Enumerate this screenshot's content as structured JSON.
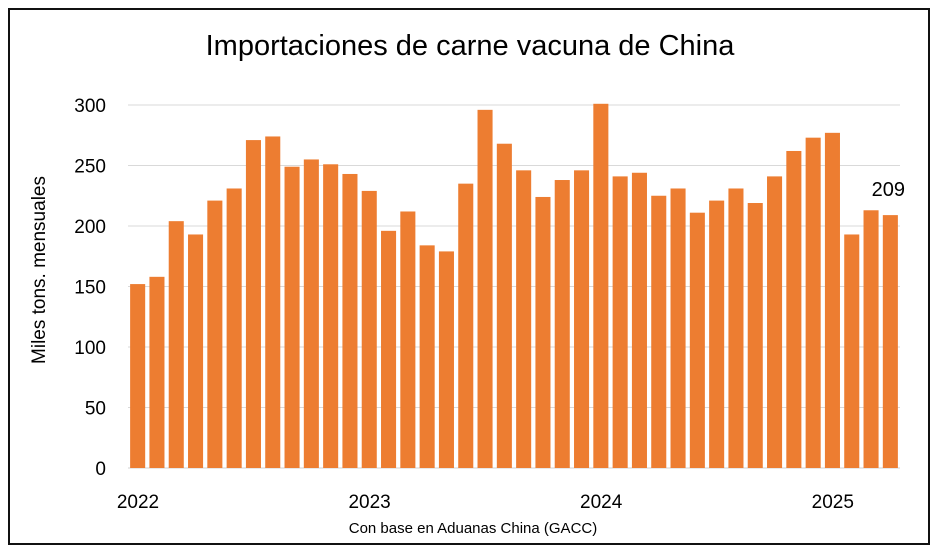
{
  "chart_data": {
    "type": "bar",
    "title": "Importaciones de carne vacuna de China",
    "ylabel": "Miles tons. mensuales",
    "xlabel": "",
    "source_note": "Con base en Aduanas China (GACC)",
    "ylim": [
      0,
      300
    ],
    "yticks": [
      0,
      50,
      100,
      150,
      200,
      250,
      300
    ],
    "xtick_labels": [
      {
        "label": "2022",
        "index": 0
      },
      {
        "label": "2023",
        "index": 12
      },
      {
        "label": "2024",
        "index": 24
      },
      {
        "label": "2025",
        "index": 36
      }
    ],
    "categories": [
      "2022-01",
      "2022-02",
      "2022-03",
      "2022-04",
      "2022-05",
      "2022-06",
      "2022-07",
      "2022-08",
      "2022-09",
      "2022-10",
      "2022-11",
      "2022-12",
      "2023-01",
      "2023-02",
      "2023-03",
      "2023-04",
      "2023-05",
      "2023-06",
      "2023-07",
      "2023-08",
      "2023-09",
      "2023-10",
      "2023-11",
      "2023-12",
      "2024-01",
      "2024-02",
      "2024-03",
      "2024-04",
      "2024-05",
      "2024-06",
      "2024-07",
      "2024-08",
      "2024-09",
      "2024-10",
      "2024-11",
      "2024-12",
      "2025-01",
      "2025-02",
      "2025-03",
      "2025-04"
    ],
    "values": [
      152,
      158,
      204,
      193,
      221,
      231,
      271,
      274,
      249,
      255,
      251,
      243,
      229,
      196,
      212,
      184,
      179,
      235,
      296,
      268,
      246,
      224,
      238,
      246,
      301,
      241,
      244,
      225,
      231,
      211,
      221,
      231,
      219,
      241,
      262,
      273,
      277,
      193,
      213,
      209
    ],
    "bar_color": "#ed7d31",
    "grid": true,
    "data_labels": [
      {
        "index": 39,
        "text": "209"
      }
    ]
  }
}
